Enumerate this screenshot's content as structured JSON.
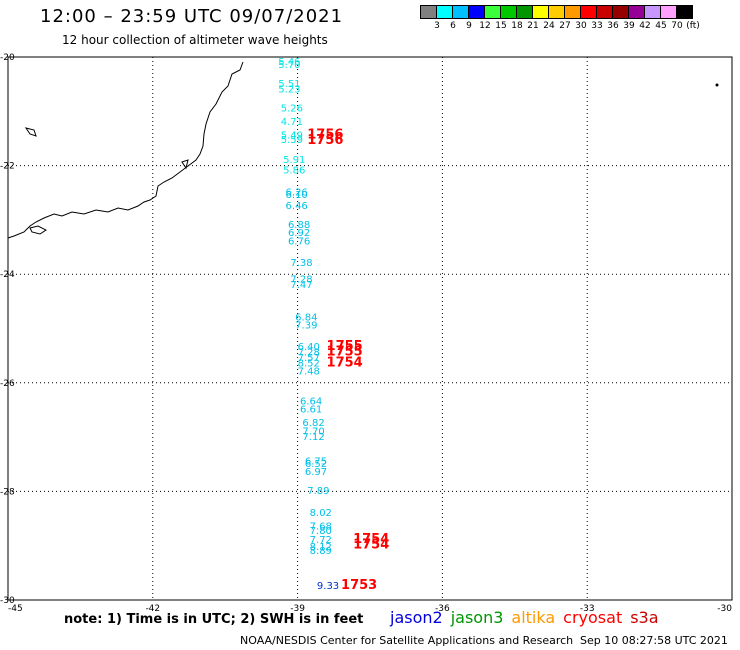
{
  "header": {
    "title": "12:00 – 23:59 UTC 09/07/2021",
    "subtitle": "12 hour collection of altimeter wave heights"
  },
  "colorbar": {
    "colors": [
      "#808080",
      "#00ffff",
      "#00bfff",
      "#0000ff",
      "#3cff3c",
      "#00c800",
      "#009600",
      "#ffff00",
      "#ffcc00",
      "#ff9900",
      "#ff0000",
      "#c80000",
      "#960000",
      "#960096",
      "#c896ff",
      "#ffa0ff",
      "#000000"
    ],
    "labels": [
      "3",
      "6",
      "9",
      "12",
      "15",
      "18",
      "21",
      "24",
      "27",
      "30",
      "33",
      "36",
      "39",
      "42",
      "45",
      "70",
      "(ft)"
    ]
  },
  "map": {
    "lat_ticks": [
      "-20",
      "-22",
      "-24",
      "-26",
      "-28",
      "-30"
    ],
    "lon_ticks": [
      "-45",
      "-42",
      "-39",
      "-36",
      "-33",
      "-30"
    ],
    "observations": [
      {
        "text": "5.46",
        "color": "#00e5e5",
        "lon": -39.4,
        "lat": -20.15
      },
      {
        "text": "5.70",
        "color": "#00e5e5",
        "lon": -39.4,
        "lat": -20.2
      },
      {
        "text": "5.51",
        "color": "#00e5e5",
        "lon": -39.4,
        "lat": -20.55
      },
      {
        "text": "5.23",
        "color": "#00e5e5",
        "lon": -39.4,
        "lat": -20.65
      },
      {
        "text": "5.26",
        "color": "#00e5e5",
        "lon": -39.35,
        "lat": -21.0
      },
      {
        "text": "4.71",
        "color": "#00e5e5",
        "lon": -39.35,
        "lat": -21.25
      },
      {
        "text": "5.49",
        "color": "#00e5e5",
        "lon": -39.35,
        "lat": -21.5
      },
      {
        "text": "5.59",
        "color": "#00e5e5",
        "lon": -39.35,
        "lat": -21.58
      },
      {
        "text": "5.91",
        "color": "#00e5e5",
        "lon": -39.3,
        "lat": -21.95
      },
      {
        "text": "5.86",
        "color": "#00e5e5",
        "lon": -39.3,
        "lat": -22.15
      },
      {
        "text": "6.26",
        "color": "#00c0e8",
        "lon": -39.25,
        "lat": -22.55
      },
      {
        "text": "6.10",
        "color": "#00c0e8",
        "lon": -39.25,
        "lat": -22.6
      },
      {
        "text": "6.46",
        "color": "#00c0e8",
        "lon": -39.25,
        "lat": -22.8
      },
      {
        "text": "6.88",
        "color": "#00c0e8",
        "lon": -39.2,
        "lat": -23.15
      },
      {
        "text": "6.92",
        "color": "#00c0e8",
        "lon": -39.2,
        "lat": -23.3
      },
      {
        "text": "6.76",
        "color": "#00c0e8",
        "lon": -39.2,
        "lat": -23.45
      },
      {
        "text": "7.38",
        "color": "#00c0e8",
        "lon": -39.15,
        "lat": -23.85
      },
      {
        "text": "7.28",
        "color": "#00c0e8",
        "lon": -39.15,
        "lat": -24.15
      },
      {
        "text": "7.47",
        "color": "#00c0e8",
        "lon": -39.15,
        "lat": -24.25
      },
      {
        "text": "6.84",
        "color": "#00c0e8",
        "lon": -39.05,
        "lat": -24.85
      },
      {
        "text": "7.39",
        "color": "#00c0e8",
        "lon": -39.05,
        "lat": -25.0
      },
      {
        "text": "6.40",
        "color": "#00c0e8",
        "lon": -39.0,
        "lat": -25.4
      },
      {
        "text": "7.28",
        "color": "#00c0e8",
        "lon": -39.0,
        "lat": -25.5
      },
      {
        "text": "7.57",
        "color": "#00c0e8",
        "lon": -39.0,
        "lat": -25.6
      },
      {
        "text": "8.52",
        "color": "#00c0e8",
        "lon": -39.0,
        "lat": -25.7
      },
      {
        "text": "7.48",
        "color": "#00c0e8",
        "lon": -39.0,
        "lat": -25.85
      },
      {
        "text": "6.64",
        "color": "#00c0e8",
        "lon": -38.95,
        "lat": -26.4
      },
      {
        "text": "6.61",
        "color": "#00c0e8",
        "lon": -38.95,
        "lat": -26.55
      },
      {
        "text": "6.82",
        "color": "#00c0e8",
        "lon": -38.9,
        "lat": -26.8
      },
      {
        "text": "7.70",
        "color": "#00c0e8",
        "lon": -38.9,
        "lat": -26.95
      },
      {
        "text": "7.12",
        "color": "#00c0e8",
        "lon": -38.9,
        "lat": -27.05
      },
      {
        "text": "6.75",
        "color": "#00c0e8",
        "lon": -38.85,
        "lat": -27.5
      },
      {
        "text": "6.52",
        "color": "#00c0e8",
        "lon": -38.85,
        "lat": -27.55
      },
      {
        "text": "6.97",
        "color": "#00c0e8",
        "lon": -38.85,
        "lat": -27.7
      },
      {
        "text": "7.89",
        "color": "#00c0e8",
        "lon": -38.8,
        "lat": -28.05
      },
      {
        "text": "8.02",
        "color": "#00c0e8",
        "lon": -38.75,
        "lat": -28.45
      },
      {
        "text": "7.68",
        "color": "#00c0e8",
        "lon": -38.75,
        "lat": -28.7
      },
      {
        "text": "7.80",
        "color": "#00c0e8",
        "lon": -38.75,
        "lat": -28.78
      },
      {
        "text": "7.72",
        "color": "#00c0e8",
        "lon": -38.75,
        "lat": -28.95
      },
      {
        "text": "8.12",
        "color": "#00c0e8",
        "lon": -38.75,
        "lat": -29.08
      },
      {
        "text": "8.89",
        "color": "#00c0e8",
        "lon": -38.75,
        "lat": -29.15
      },
      {
        "text": "9.33",
        "color": "#0033cc",
        "lon": -38.6,
        "lat": -29.8
      }
    ],
    "time_labels": [
      {
        "text": "1756",
        "lon": -38.8,
        "lat": -21.5
      },
      {
        "text": "1756",
        "lon": -38.8,
        "lat": -21.6
      },
      {
        "text": "1755",
        "lon": -38.4,
        "lat": -25.4
      },
      {
        "text": "1755",
        "lon": -38.4,
        "lat": -25.5
      },
      {
        "text": "1754",
        "lon": -38.4,
        "lat": -25.7
      },
      {
        "text": "1754",
        "lon": -37.85,
        "lat": -28.95
      },
      {
        "text": "1754",
        "lon": -37.85,
        "lat": -29.05
      },
      {
        "text": "1753",
        "lon": -38.1,
        "lat": -29.8
      }
    ]
  },
  "footer": {
    "note": "note: 1) Time is in UTC; 2) SWH is in feet",
    "satellites": [
      {
        "name": "jason2",
        "color": "#0000dd"
      },
      {
        "name": "jason3",
        "color": "#009600"
      },
      {
        "name": "altika",
        "color": "#ff9900"
      },
      {
        "name": "cryosat",
        "color": "#ff0000"
      },
      {
        "name": "s3a",
        "color": "#cc0000"
      }
    ],
    "credit": "NOAA/NESDIS Center for Satellite Applications and Research",
    "timestamp": "Sep 10 08:27:58 UTC 2021"
  }
}
